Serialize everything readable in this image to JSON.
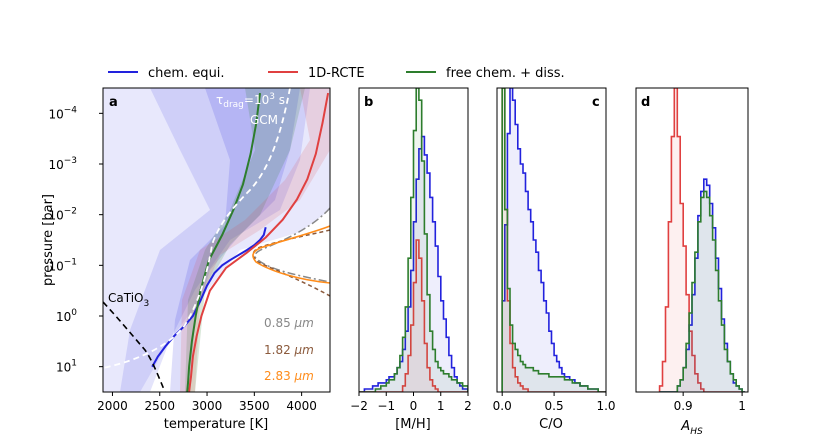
{
  "chart_data": [
    {
      "panel": "a",
      "type": "line",
      "xlabel": "temperature [K]",
      "ylabel": "pressure [bar]",
      "xlim": [
        1900,
        4300
      ],
      "ylim_log10": [
        -4.5,
        1.5
      ],
      "yscale": "log",
      "xticks": [
        2000,
        2500,
        3000,
        3500,
        4000
      ],
      "yticks": [
        "10^-4",
        "10^-3",
        "10^-2",
        "10^-1",
        "10^0",
        "10^1"
      ],
      "legend": [
        "chem. equi.",
        "1D-RCTE",
        "free chem. + diss."
      ],
      "legend_colors": [
        "#2222dd",
        "#e04040",
        "#2d7d2d"
      ],
      "annotations": {
        "gcm": "GCM",
        "cond": "CaTiO",
        "cond_sub": "3",
        "wl1_value": "0.85",
        "wl2_value": "1.82",
        "wl3_value": "2.83",
        "wl_unit": "μm",
        "wl_colors": [
          "#888888",
          "#8b5a3c",
          "#ff8c1a"
        ]
      },
      "series": [
        {
          "name": "chem. equi.",
          "color": "#2222dd",
          "T": [
            3620,
            3600,
            3560,
            3500,
            3420,
            3330,
            3240,
            3160,
            3080,
            3000,
            2930,
            2850,
            2760,
            2650,
            2560,
            2480,
            2420
          ],
          "log10P": [
            -1.75,
            -1.6,
            -1.5,
            -1.4,
            -1.3,
            -1.2,
            -1.1,
            -1.0,
            -0.85,
            -0.6,
            -0.3,
            0.0,
            0.2,
            0.4,
            0.6,
            0.8,
            1.0
          ]
        },
        {
          "name": "1D-RCTE",
          "color": "#e04040",
          "T": [
            4280,
            4220,
            4150,
            4060,
            3950,
            3800,
            3620,
            3420,
            3200,
            3030,
            2940,
            2890,
            2850,
            2830,
            2820,
            2810
          ],
          "log10P": [
            -4.4,
            -3.8,
            -3.2,
            -2.7,
            -2.3,
            -1.9,
            -1.55,
            -1.25,
            -0.95,
            -0.5,
            0.0,
            0.4,
            0.8,
            1.2,
            1.35,
            1.5
          ]
        },
        {
          "name": "free chem. + diss.",
          "color": "#2d7d2d",
          "T": [
            3560,
            3520,
            3460,
            3380,
            3280,
            3160,
            3020,
            2930,
            2880,
            2840,
            2810,
            2800,
            2790
          ],
          "log10P": [
            -4.4,
            -3.8,
            -3.2,
            -2.6,
            -2.1,
            -1.6,
            -1.1,
            -0.5,
            0.0,
            0.5,
            1.0,
            1.3,
            1.5
          ]
        }
      ]
    },
    {
      "panel": "b",
      "type": "histogram",
      "xlabel": "[M/H]",
      "xlim": [
        -2,
        2
      ],
      "xticks": [
        -2,
        -1,
        0,
        1,
        2
      ],
      "series": [
        {
          "name": "chem. equi.",
          "color": "#2222dd",
          "edges_start": -2,
          "bin": 0.1,
          "values": [
            0,
            0,
            1,
            1,
            1,
            2,
            2,
            3,
            3,
            3,
            4,
            5,
            5,
            6,
            8,
            10,
            14,
            20,
            28,
            40,
            56,
            70,
            80,
            84,
            78,
            72,
            64,
            56,
            48,
            38,
            30,
            24,
            18,
            12,
            8,
            5,
            3,
            2,
            1,
            1
          ]
        },
        {
          "name": "1D-RCTE",
          "color": "#e04040",
          "edges_start": -2,
          "bin": 0.1,
          "values": [
            0,
            0,
            0,
            0,
            0,
            0,
            0,
            0,
            0,
            0,
            0,
            0,
            0,
            0,
            0,
            0,
            2,
            6,
            12,
            22,
            36,
            50,
            44,
            30,
            16,
            8,
            4,
            2,
            1,
            0,
            0,
            0,
            0,
            0,
            0,
            0,
            0,
            0,
            0,
            0
          ]
        },
        {
          "name": "free chem. + diss.",
          "color": "#2d7d2d",
          "edges_start": -2,
          "bin": 0.1,
          "values": [
            0,
            0,
            0,
            0,
            0,
            0,
            1,
            1,
            2,
            2,
            3,
            4,
            4,
            6,
            8,
            12,
            18,
            28,
            44,
            64,
            86,
            100,
            96,
            76,
            52,
            32,
            20,
            14,
            10,
            8,
            7,
            6,
            6,
            5,
            4,
            4,
            3,
            3,
            2,
            2
          ]
        }
      ]
    },
    {
      "panel": "c",
      "type": "histogram",
      "xlabel": "C/O",
      "xlim": [
        -0.05,
        1.0
      ],
      "xticks": [
        0.0,
        0.5,
        1.0
      ],
      "series": [
        {
          "name": "chem. equi.",
          "color": "#2222dd",
          "edges_start": 0.0,
          "bin": 0.025,
          "values": [
            30,
            55,
            85,
            100,
            96,
            88,
            80,
            75,
            72,
            66,
            60,
            56,
            50,
            46,
            40,
            36,
            30,
            26,
            20,
            16,
            12,
            10,
            8,
            6,
            5,
            5,
            4,
            4,
            3,
            3,
            2,
            2,
            2,
            1,
            1,
            1,
            1,
            0,
            0,
            0
          ]
        },
        {
          "name": "1D-RCTE",
          "color": "#e04040",
          "edges_start": 0.0,
          "bin": 0.025,
          "values": [
            100,
            60,
            30,
            16,
            8,
            5,
            3,
            2,
            1,
            1,
            0,
            0,
            0,
            0,
            0,
            0,
            0,
            0,
            0,
            0,
            0,
            0,
            0,
            0,
            0,
            0,
            0,
            0,
            0,
            0,
            0,
            0,
            0,
            0,
            0,
            0,
            0,
            0,
            0,
            0
          ]
        },
        {
          "name": "free chem. + diss.",
          "color": "#2d7d2d",
          "edges_start": 0.0,
          "bin": 0.025,
          "values": [
            100,
            60,
            34,
            22,
            16,
            14,
            12,
            10,
            9,
            8,
            8,
            8,
            7,
            7,
            6,
            6,
            6,
            6,
            5,
            5,
            5,
            5,
            5,
            5,
            4,
            4,
            4,
            3,
            3,
            3,
            2,
            2,
            2,
            1,
            1,
            1,
            1,
            0,
            0,
            0
          ]
        }
      ]
    },
    {
      "panel": "d",
      "type": "histogram",
      "xlabel": "A",
      "xlabel_sub": "HS",
      "xlim": [
        0.82,
        1.01
      ],
      "xticks": [
        0.9,
        1.0
      ],
      "series": [
        {
          "name": "1D-RCTE",
          "color": "#e04040",
          "edges_start": 0.86,
          "bin": 0.005,
          "values": [
            2,
            10,
            28,
            56,
            84,
            100,
            84,
            62,
            48,
            32,
            20,
            12,
            6,
            3,
            1,
            0,
            0,
            0,
            0,
            0,
            0,
            0,
            0,
            0,
            0,
            0,
            0,
            0,
            0
          ]
        },
        {
          "name": "chem. equi.",
          "color": "#2222dd",
          "edges_start": 0.86,
          "bin": 0.005,
          "values": [
            0,
            0,
            0,
            0,
            0,
            0,
            2,
            4,
            8,
            14,
            22,
            32,
            44,
            58,
            66,
            70,
            68,
            62,
            54,
            44,
            34,
            24,
            16,
            10,
            6,
            3,
            2,
            1,
            0
          ]
        },
        {
          "name": "free chem. + diss.",
          "color": "#2d7d2d",
          "edges_start": 0.86,
          "bin": 0.005,
          "values": [
            0,
            0,
            0,
            0,
            0,
            0,
            2,
            4,
            8,
            16,
            26,
            36,
            46,
            56,
            64,
            66,
            64,
            58,
            50,
            40,
            30,
            22,
            14,
            10,
            6,
            4,
            2,
            1,
            0
          ]
        }
      ]
    }
  ]
}
